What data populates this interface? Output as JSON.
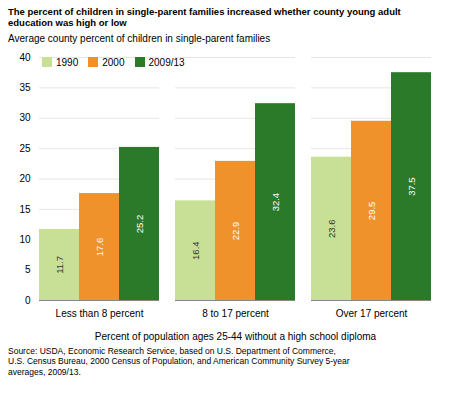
{
  "chart_data": {
    "type": "bar",
    "title": "The percent of children in single-parent families increased whether county young adult\neducation was high or low",
    "subtitle": "Average county percent of children in single-parent families",
    "xlabel": "Percent of population ages 25-44 without a high school diploma",
    "source": "Source: USDA, Economic Research Service, based on U.S. Department of Commerce,\nU.S. Census Bureau, 2000 Census of Population, and American Community Survey 5-year\naverages, 2009/13.",
    "categories": [
      "Less than 8 percent",
      "8 to 17 percent",
      "Over 17 percent"
    ],
    "series": [
      {
        "name": "1990",
        "color": "#c8e096",
        "values": [
          11.7,
          16.4,
          23.6
        ]
      },
      {
        "name": "2000",
        "color": "#f0922b",
        "values": [
          17.6,
          22.9,
          29.5
        ]
      },
      {
        "name": "2009/13",
        "color": "#2a7a2a",
        "values": [
          25.2,
          32.4,
          37.5
        ]
      }
    ],
    "ylim": [
      0,
      40
    ],
    "yticks": [
      0,
      5,
      10,
      15,
      20,
      25,
      30,
      35,
      40
    ],
    "grid": true,
    "legend": "upper left",
    "data_labels": true
  }
}
